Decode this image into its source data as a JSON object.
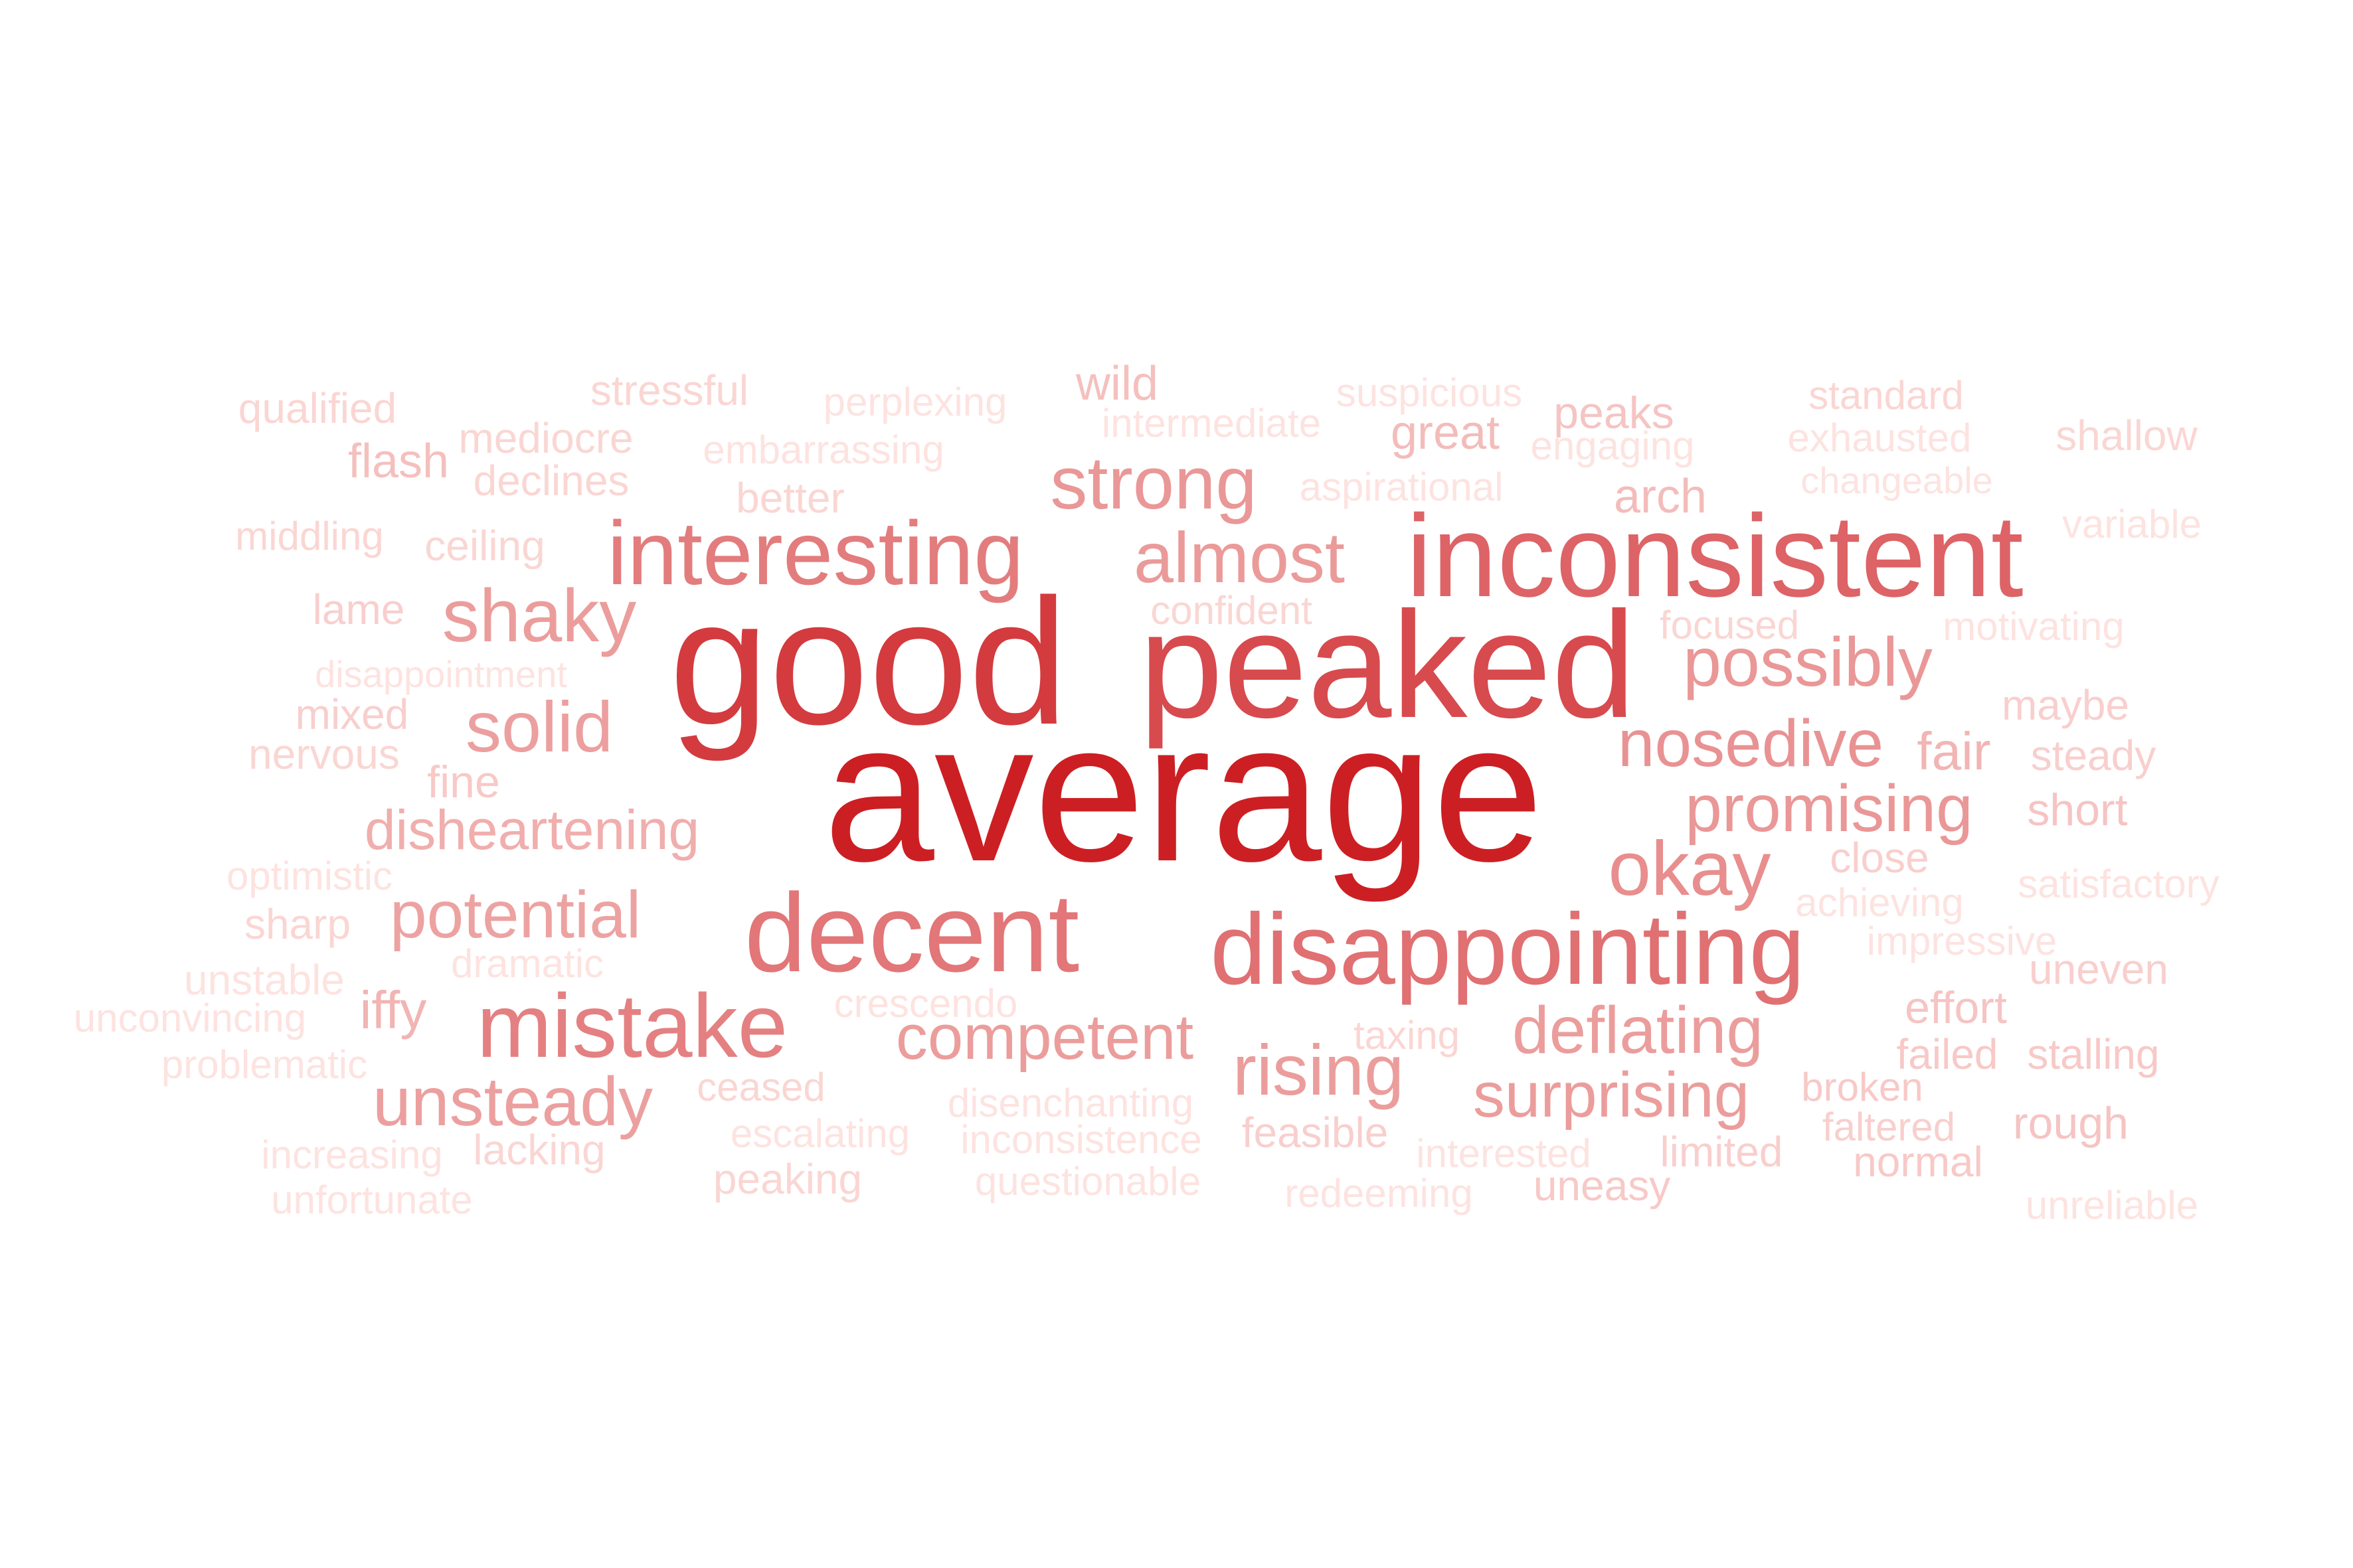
{
  "words": [
    {
      "text": "average",
      "weight": 100
    },
    {
      "text": "good",
      "weight": 80
    },
    {
      "text": "peaked",
      "weight": 70
    },
    {
      "text": "inconsistent",
      "weight": 55
    },
    {
      "text": "disappointing",
      "weight": 48
    },
    {
      "text": "decent",
      "weight": 45
    },
    {
      "text": "interesting",
      "weight": 42
    },
    {
      "text": "mistake",
      "weight": 40
    },
    {
      "text": "okay",
      "weight": 34
    },
    {
      "text": "nosedive",
      "weight": 32
    },
    {
      "text": "possibly",
      "weight": 30
    },
    {
      "text": "promising",
      "weight": 30
    },
    {
      "text": "strong",
      "weight": 30
    },
    {
      "text": "almost",
      "weight": 29
    },
    {
      "text": "competent",
      "weight": 28
    },
    {
      "text": "deflating",
      "weight": 28
    },
    {
      "text": "rising",
      "weight": 28
    },
    {
      "text": "surprising",
      "weight": 28
    },
    {
      "text": "shaky",
      "weight": 28
    },
    {
      "text": "solid",
      "weight": 27
    },
    {
      "text": "unsteady",
      "weight": 27
    },
    {
      "text": "potential",
      "weight": 26
    },
    {
      "text": "disheartening",
      "weight": 22
    },
    {
      "text": "iffy",
      "weight": 20
    },
    {
      "text": "fair",
      "weight": 20
    },
    {
      "text": "arch",
      "weight": 18
    },
    {
      "text": "great",
      "weight": 18
    },
    {
      "text": "flash",
      "weight": 17
    },
    {
      "text": "wild",
      "weight": 17
    },
    {
      "text": "peaks",
      "weight": 16
    },
    {
      "text": "effort",
      "weight": 16
    },
    {
      "text": "rough",
      "weight": 16
    },
    {
      "text": "short",
      "weight": 16
    },
    {
      "text": "fine",
      "weight": 15
    },
    {
      "text": "normal",
      "weight": 15
    },
    {
      "text": "broken",
      "weight": 15
    },
    {
      "text": "failed",
      "weight": 15
    },
    {
      "text": "stalling",
      "weight": 15
    },
    {
      "text": "uneasy",
      "weight": 15
    },
    {
      "text": "limited",
      "weight": 14
    },
    {
      "text": "faltered",
      "weight": 14
    },
    {
      "text": "maybe",
      "weight": 14
    },
    {
      "text": "steady",
      "weight": 14
    },
    {
      "text": "close",
      "weight": 14
    },
    {
      "text": "uneven",
      "weight": 14
    },
    {
      "text": "lame",
      "weight": 14
    },
    {
      "text": "mixed",
      "weight": 14
    },
    {
      "text": "feasible",
      "weight": 14
    },
    {
      "text": "taxing",
      "weight": 13
    },
    {
      "text": "ceased",
      "weight": 13
    },
    {
      "text": "lacking",
      "weight": 13
    },
    {
      "text": "peaking",
      "weight": 13
    },
    {
      "text": "better",
      "weight": 13
    },
    {
      "text": "shallow",
      "weight": 13
    },
    {
      "text": "standard",
      "weight": 13
    },
    {
      "text": "declines",
      "weight": 13
    },
    {
      "text": "mediocre",
      "weight": 13
    },
    {
      "text": "stressful",
      "weight": 13
    },
    {
      "text": "ceiling",
      "weight": 13
    },
    {
      "text": "middling",
      "weight": 13
    },
    {
      "text": "qualified",
      "weight": 13
    },
    {
      "text": "sharp",
      "weight": 13
    },
    {
      "text": "nervous",
      "weight": 13
    },
    {
      "text": "focused",
      "weight": 13
    },
    {
      "text": "confident",
      "weight": 13
    },
    {
      "text": "engaging",
      "weight": 12
    },
    {
      "text": "exhausted",
      "weight": 12
    },
    {
      "text": "variable",
      "weight": 12
    },
    {
      "text": "suspicious",
      "weight": 12
    },
    {
      "text": "aspirational",
      "weight": 12
    },
    {
      "text": "perplexing",
      "weight": 12
    },
    {
      "text": "embarrassing",
      "weight": 12
    },
    {
      "text": "intermediate",
      "weight": 12
    },
    {
      "text": "changeable",
      "weight": 12
    },
    {
      "text": "motivating",
      "weight": 12
    },
    {
      "text": "disappointment",
      "weight": 12
    },
    {
      "text": "optimistic",
      "weight": 12
    },
    {
      "text": "dramatic",
      "weight": 12
    },
    {
      "text": "unstable",
      "weight": 12
    },
    {
      "text": "crescendo",
      "weight": 12
    },
    {
      "text": "unconvincing",
      "weight": 12
    },
    {
      "text": "problematic",
      "weight": 12
    },
    {
      "text": "increasing",
      "weight": 12
    },
    {
      "text": "unfortunate",
      "weight": 12
    },
    {
      "text": "escalating",
      "weight": 12
    },
    {
      "text": "disenchanting",
      "weight": 12
    },
    {
      "text": "inconsistence",
      "weight": 12
    },
    {
      "text": "questionable",
      "weight": 12
    },
    {
      "text": "interested",
      "weight": 12
    },
    {
      "text": "redeeming",
      "weight": 12
    },
    {
      "text": "achieving",
      "weight": 12
    },
    {
      "text": "impressive",
      "weight": 12
    },
    {
      "text": "satisfactory",
      "weight": 12
    },
    {
      "text": "unreliable",
      "weight": 12
    }
  ],
  "colors": {
    "max": "#cc1f24",
    "min": "#fde3e0"
  }
}
